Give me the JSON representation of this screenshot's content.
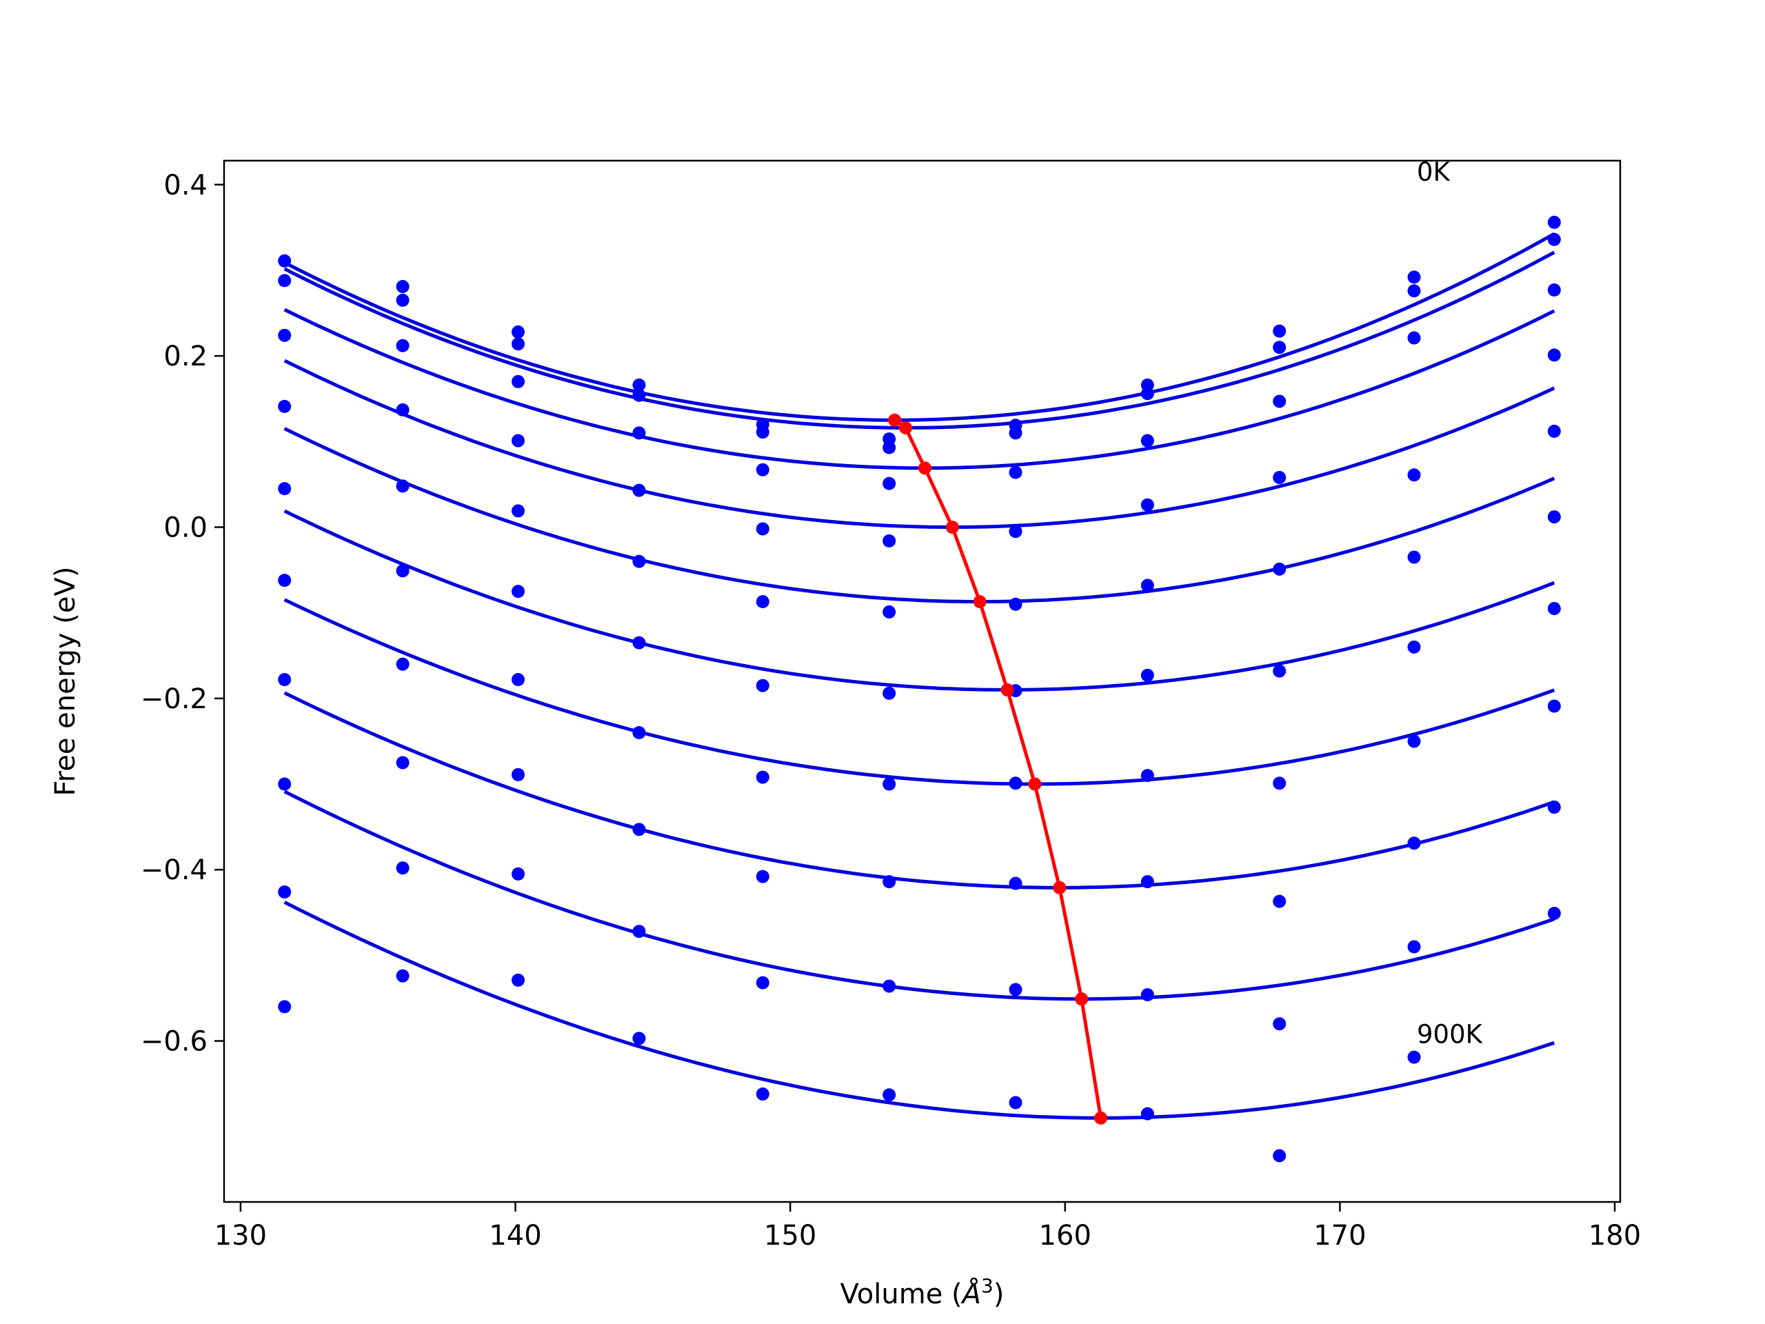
{
  "chart_data": {
    "type": "scatter",
    "xlabel": "Volume (",
    "xlabel_unit": "Å",
    "xlabel_exp": "3",
    "xlabel_close": ")",
    "ylabel": "Free energy (eV)",
    "xlim": [
      129.4,
      180.2
    ],
    "ylim": [
      -0.788,
      0.428
    ],
    "xticks": [
      130,
      140,
      150,
      160,
      170,
      180
    ],
    "yticks": [
      0.4,
      0.2,
      0.0,
      -0.2,
      -0.4,
      -0.6
    ],
    "ytick_labels": [
      "0.4",
      "0.2",
      "0.0",
      "−0.2",
      "−0.4",
      "−0.6"
    ],
    "xtick_labels": [
      "130",
      "140",
      "150",
      "160",
      "170",
      "180"
    ],
    "annotations": [
      {
        "text": "0K",
        "x": 172.8,
        "y": 0.415
      },
      {
        "text": "900K",
        "x": 172.8,
        "y": -0.592
      }
    ],
    "colors": {
      "points": "#0000ff",
      "fit": "#0000dd",
      "minimum_path": "#ff0000"
    },
    "volumes": [
      131.6,
      135.9,
      140.1,
      144.5,
      149.0,
      153.6,
      158.2,
      163.0,
      167.8,
      172.7,
      177.8
    ],
    "curve_x_range": [
      131.6,
      177.8
    ],
    "series": [
      {
        "values": [
          0.311,
          0.281,
          0.228,
          0.166,
          0.12,
          0.103,
          0.119,
          0.166,
          0.229,
          0.292,
          0.356
        ],
        "fit": {
          "v0": 153.8,
          "e0": 0.125,
          "b": 0.0003755,
          "c": 1e-07
        }
      },
      {
        "values": [
          0.288,
          0.265,
          0.214,
          0.154,
          0.111,
          0.093,
          0.11,
          0.156,
          0.21,
          0.276,
          0.336
        ],
        "fit": {
          "v0": 154.2,
          "e0": 0.116,
          "b": 0.0003657,
          "c": 1e-07
        }
      },
      {
        "values": [
          0.224,
          0.212,
          0.17,
          0.11,
          0.067,
          0.051,
          0.064,
          0.101,
          0.147,
          0.221,
          0.277
        ],
        "fit": {
          "v0": 154.9,
          "e0": 0.069,
          "b": 0.0003455,
          "c": 2e-07
        }
      },
      {
        "values": [
          0.141,
          0.137,
          0.101,
          0.043,
          -0.002,
          -0.016,
          -0.005,
          0.026,
          0.058,
          0.061,
          0.201
        ],
        "fit": {
          "v0": 155.9,
          "e0": 0.0,
          "b": 0.0003342,
          "c": 2e-07
        }
      },
      {
        "values": [
          0.045,
          0.048,
          0.019,
          -0.04,
          -0.087,
          -0.099,
          -0.09,
          -0.068,
          -0.049,
          -0.035,
          0.112
        ],
        "fit": {
          "v0": 156.9,
          "e0": -0.087,
          "b": 0.0003234,
          "c": 3e-07
        }
      },
      {
        "values": [
          -0.062,
          -0.051,
          -0.075,
          -0.135,
          -0.185,
          -0.194,
          -0.191,
          -0.173,
          -0.168,
          -0.14,
          0.012
        ],
        "fit": {
          "v0": 157.9,
          "e0": -0.19,
          "b": 0.0003099,
          "c": 3e-07
        }
      },
      {
        "values": [
          -0.178,
          -0.16,
          -0.178,
          -0.24,
          -0.292,
          -0.3,
          -0.299,
          -0.29,
          -0.299,
          -0.25,
          -0.095
        ],
        "fit": {
          "v0": 158.9,
          "e0": -0.3,
          "b": 0.0002998,
          "c": 4e-07
        }
      },
      {
        "values": [
          -0.3,
          -0.275,
          -0.289,
          -0.353,
          -0.408,
          -0.414,
          -0.416,
          -0.414,
          -0.437,
          -0.369,
          -0.209
        ],
        "fit": {
          "v0": 159.8,
          "e0": -0.421,
          "b": 0.0003001,
          "c": 5e-07
        }
      },
      {
        "values": [
          -0.426,
          -0.398,
          -0.405,
          -0.472,
          -0.532,
          -0.536,
          -0.54,
          -0.546,
          -0.58,
          -0.49,
          -0.327
        ],
        "fit": {
          "v0": 160.6,
          "e0": -0.551,
          "b": 0.0003055,
          "c": 6e-07
        }
      },
      {
        "values": [
          -0.56,
          -0.524,
          -0.529,
          -0.597,
          -0.662,
          -0.663,
          -0.672,
          -0.685,
          -0.734,
          -0.619,
          -0.451
        ],
        "fit": {
          "v0": 161.3,
          "e0": -0.69,
          "b": 0.0003095,
          "c": 8e-07
        }
      }
    ],
    "minimum_path": {
      "x": [
        153.8,
        154.2,
        154.9,
        155.9,
        156.9,
        157.9,
        158.9,
        159.8,
        160.6,
        161.3
      ],
      "y": [
        0.125,
        0.116,
        0.069,
        0.0,
        -0.087,
        -0.19,
        -0.3,
        -0.421,
        -0.551,
        -0.69
      ]
    }
  }
}
